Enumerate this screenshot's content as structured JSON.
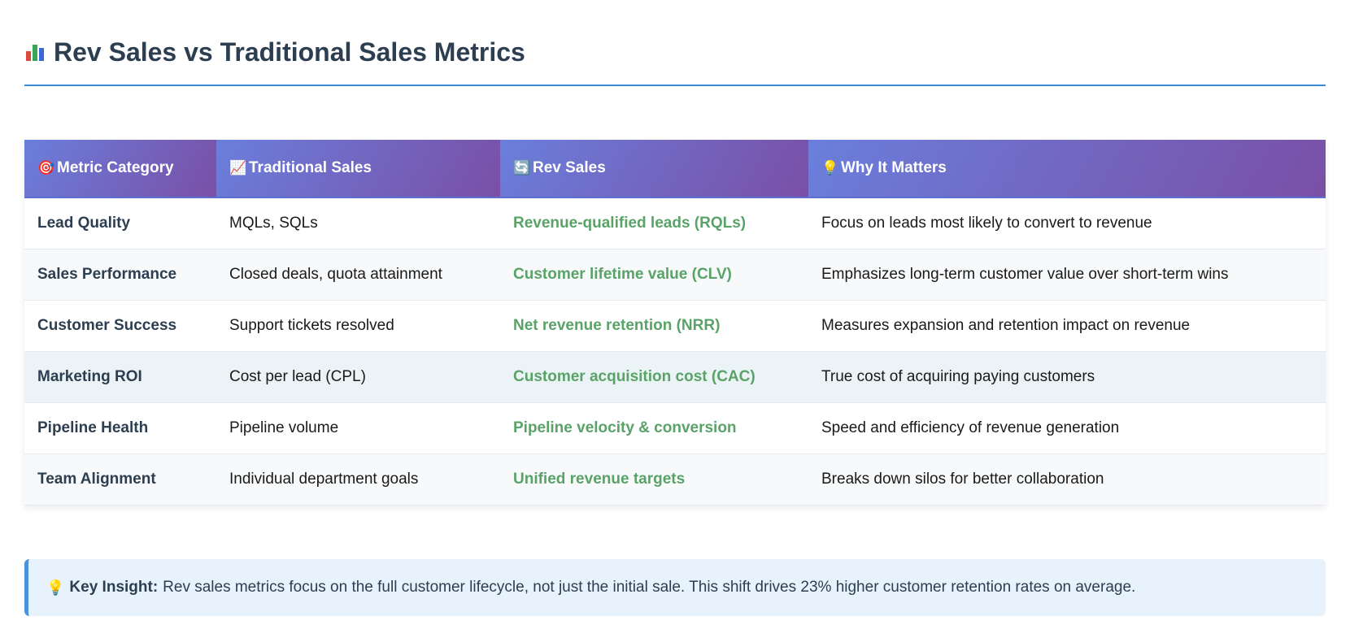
{
  "header": {
    "title": "Rev Sales vs Traditional Sales Metrics",
    "icon": "bar-chart-icon"
  },
  "table": {
    "columns": [
      {
        "icon": "🎯",
        "label": "Metric Category"
      },
      {
        "icon": "📈",
        "label": "Traditional Sales"
      },
      {
        "icon": "🔄",
        "label": "Rev Sales"
      },
      {
        "icon": "💡",
        "label": "Why It Matters"
      }
    ],
    "rows": [
      {
        "category": "Lead Quality",
        "traditional": "MQLs, SQLs",
        "rev": "Revenue-qualified leads (RQLs)",
        "why": "Focus on leads most likely to convert to revenue"
      },
      {
        "category": "Sales Performance",
        "traditional": "Closed deals, quota attainment",
        "rev": "Customer lifetime value (CLV)",
        "why": "Emphasizes long-term customer value over short-term wins"
      },
      {
        "category": "Customer Success",
        "traditional": "Support tickets resolved",
        "rev": "Net revenue retention (NRR)",
        "why": "Measures expansion and retention impact on revenue"
      },
      {
        "category": "Marketing ROI",
        "traditional": "Cost per lead (CPL)",
        "rev": "Customer acquisition cost (CAC)",
        "why": "True cost of acquiring paying customers"
      },
      {
        "category": "Pipeline Health",
        "traditional": "Pipeline volume",
        "rev": "Pipeline velocity & conversion",
        "why": "Speed and efficiency of revenue generation"
      },
      {
        "category": "Team Alignment",
        "traditional": "Individual department goals",
        "rev": "Unified revenue targets",
        "why": "Breaks down silos for better collaboration"
      }
    ]
  },
  "insight": {
    "icon": "💡",
    "label": "Key Insight:",
    "text": "Rev sales metrics focus on the full customer lifecycle, not just the initial sale. This shift drives 23% higher customer retention rates on average."
  },
  "colors": {
    "accent": "#3b8ad8",
    "header_gradient_start": "#6a7fdc",
    "header_gradient_end": "#7a4fa6",
    "rev_text": "#5aa368"
  }
}
